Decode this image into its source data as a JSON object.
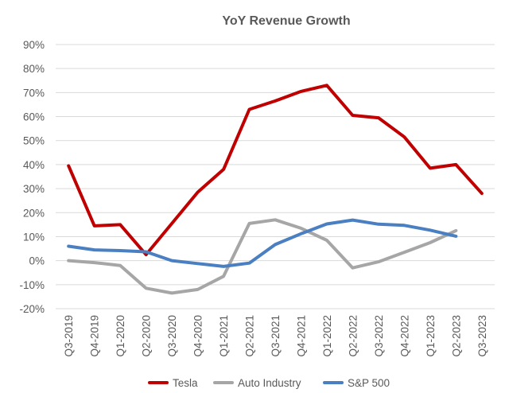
{
  "chart_data": {
    "type": "line",
    "title": "YoY Revenue Growth",
    "xlabel": "",
    "ylabel": "",
    "categories": [
      "Q3-2019",
      "Q4-2019",
      "Q1-2020",
      "Q2-2020",
      "Q3-2020",
      "Q4-2020",
      "Q1-2021",
      "Q2-2021",
      "Q3-2021",
      "Q4-2021",
      "Q1-2022",
      "Q2-2022",
      "Q3-2022",
      "Q4-2022",
      "Q1-2023",
      "Q2-2023",
      "Q3-2023"
    ],
    "y_ticks": [
      "90%",
      "80%",
      "70%",
      "60%",
      "50%",
      "40%",
      "30%",
      "20%",
      "10%",
      "0%",
      "-10%",
      "-20%"
    ],
    "ylim": [
      -20,
      90
    ],
    "grid": true,
    "legend_position": "bottom",
    "series": [
      {
        "name": "Tesla",
        "color": "#C00000",
        "values": [
          39.5,
          14.5,
          15,
          2.5,
          15.5,
          28.5,
          38,
          63,
          66.5,
          70.5,
          73,
          60.5,
          59.5,
          51.5,
          38.5,
          40,
          28
        ]
      },
      {
        "name": "Auto Industry",
        "color": "#A6A6A6",
        "values": [
          0,
          -0.8,
          -2,
          -11.5,
          -13.5,
          -12,
          -6.5,
          15.5,
          17,
          13.5,
          8.5,
          -3,
          -0.5,
          3.5,
          7.5,
          12.5,
          null
        ]
      },
      {
        "name": "S&P 500",
        "color": "#4A7FC1",
        "values": [
          6,
          4.5,
          4.2,
          3.7,
          0,
          -1.2,
          -2.4,
          -1,
          6.7,
          11.2,
          15.3,
          16.9,
          15.2,
          14.7,
          12.7,
          10.2,
          null
        ]
      }
    ]
  }
}
